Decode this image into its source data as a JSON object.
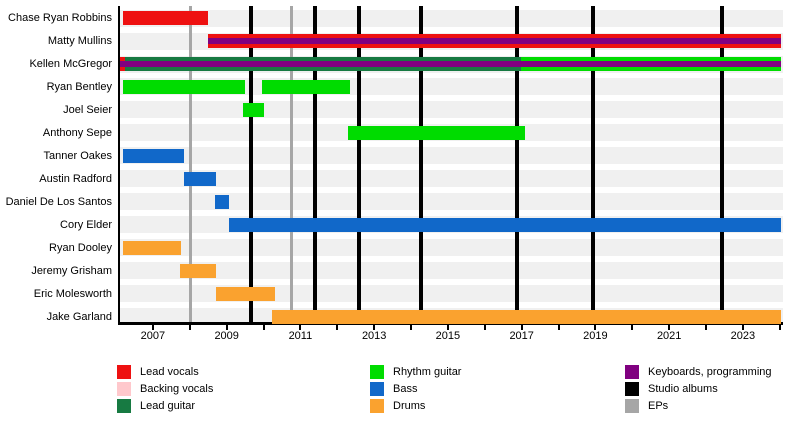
{
  "chart_data": {
    "type": "bar",
    "variant": "gantt-band-members-timeline",
    "x_axis": {
      "year_min": 2006.08,
      "year_max": 2024.09,
      "major_ticks": [
        2007,
        2009,
        2011,
        2013,
        2015,
        2017,
        2019,
        2021,
        2023
      ],
      "minor_tick_start": 2007,
      "minor_tick_end": 2024,
      "minor_tick_step": 1
    },
    "present_year": 2024.03,
    "colors": {
      "lead_vocals": "#ee1111",
      "backing_vocals": "#ffc8cc",
      "lead_guitar": "#177a42",
      "rhythm_guitar": "#00dc00",
      "bass": "#1168c9",
      "drums": "#faa22f",
      "keyboards": "#800080",
      "studio_albums": "#000000",
      "eps": "#a6a6a6",
      "row_band": "#f0f0f0",
      "axis": "#000000"
    },
    "members": [
      {
        "name": "Chase Ryan Robbins",
        "bars": [
          {
            "role": "lead_vocals",
            "from": 2006.2,
            "to": 2008.5
          }
        ]
      },
      {
        "name": "Matty Mullins",
        "bars": [
          {
            "role": "lead_vocals",
            "from": 2008.5,
            "to": "present"
          },
          {
            "role": "keyboards",
            "from": 2008.5,
            "to": "present",
            "overlay": true
          }
        ]
      },
      {
        "name": "Kellen McGregor",
        "bars": [
          {
            "role": "lead_guitar",
            "from": 2006.1,
            "to": 2016.98
          },
          {
            "role": "rhythm_guitar",
            "from": 2016.98,
            "to": "present"
          },
          {
            "role": "lead_vocals",
            "from": 2006.1,
            "to": 2006.25
          },
          {
            "role": "keyboards",
            "from": 2006.1,
            "to": "present",
            "overlay": true
          }
        ]
      },
      {
        "name": "Ryan Bentley",
        "bars": [
          {
            "role": "rhythm_guitar",
            "from": 2006.2,
            "to": 2009.5
          },
          {
            "role": "rhythm_guitar",
            "from": 2009.97,
            "to": 2012.35
          }
        ]
      },
      {
        "name": "Joel Seier",
        "bars": [
          {
            "role": "rhythm_guitar",
            "from": 2009.45,
            "to": 2010.0
          }
        ]
      },
      {
        "name": "Anthony Sepe",
        "bars": [
          {
            "role": "rhythm_guitar",
            "from": 2012.3,
            "to": 2017.1
          }
        ]
      },
      {
        "name": "Tanner Oakes",
        "bars": [
          {
            "role": "bass",
            "from": 2006.2,
            "to": 2007.85
          }
        ]
      },
      {
        "name": "Austin Radford",
        "bars": [
          {
            "role": "bass",
            "from": 2007.85,
            "to": 2008.7
          }
        ]
      },
      {
        "name": "Daniel De Los Santos",
        "bars": [
          {
            "role": "bass",
            "from": 2008.67,
            "to": 2009.05
          }
        ]
      },
      {
        "name": "Cory Elder",
        "bars": [
          {
            "role": "bass",
            "from": 2009.05,
            "to": "present"
          }
        ]
      },
      {
        "name": "Ryan Dooley",
        "bars": [
          {
            "role": "drums",
            "from": 2006.2,
            "to": 2007.77
          }
        ]
      },
      {
        "name": "Jeremy Grisham",
        "bars": [
          {
            "role": "drums",
            "from": 2007.72,
            "to": 2008.7
          }
        ]
      },
      {
        "name": "Eric Molesworth",
        "bars": [
          {
            "role": "drums",
            "from": 2008.7,
            "to": 2010.3
          }
        ]
      },
      {
        "name": "Jake Garland",
        "bars": [
          {
            "role": "drums",
            "from": 2010.22,
            "to": "present"
          }
        ]
      }
    ],
    "events": {
      "studio_albums": [
        2009.65,
        2011.4,
        2012.6,
        2014.28,
        2016.86,
        2018.92,
        2022.42
      ],
      "eps": [
        2008.02,
        2010.76
      ]
    },
    "legend": {
      "columns": [
        [
          {
            "key": "lead_vocals",
            "label": "Lead vocals"
          },
          {
            "key": "backing_vocals",
            "label": "Backing vocals"
          },
          {
            "key": "lead_guitar",
            "label": "Lead guitar"
          }
        ],
        [
          {
            "key": "rhythm_guitar",
            "label": "Rhythm guitar"
          },
          {
            "key": "bass",
            "label": "Bass"
          },
          {
            "key": "drums",
            "label": "Drums"
          }
        ],
        [
          {
            "key": "keyboards",
            "label": "Keyboards, programming"
          },
          {
            "key": "studio_albums",
            "label": "Studio albums"
          },
          {
            "key": "eps",
            "label": "EPs"
          }
        ]
      ]
    }
  }
}
